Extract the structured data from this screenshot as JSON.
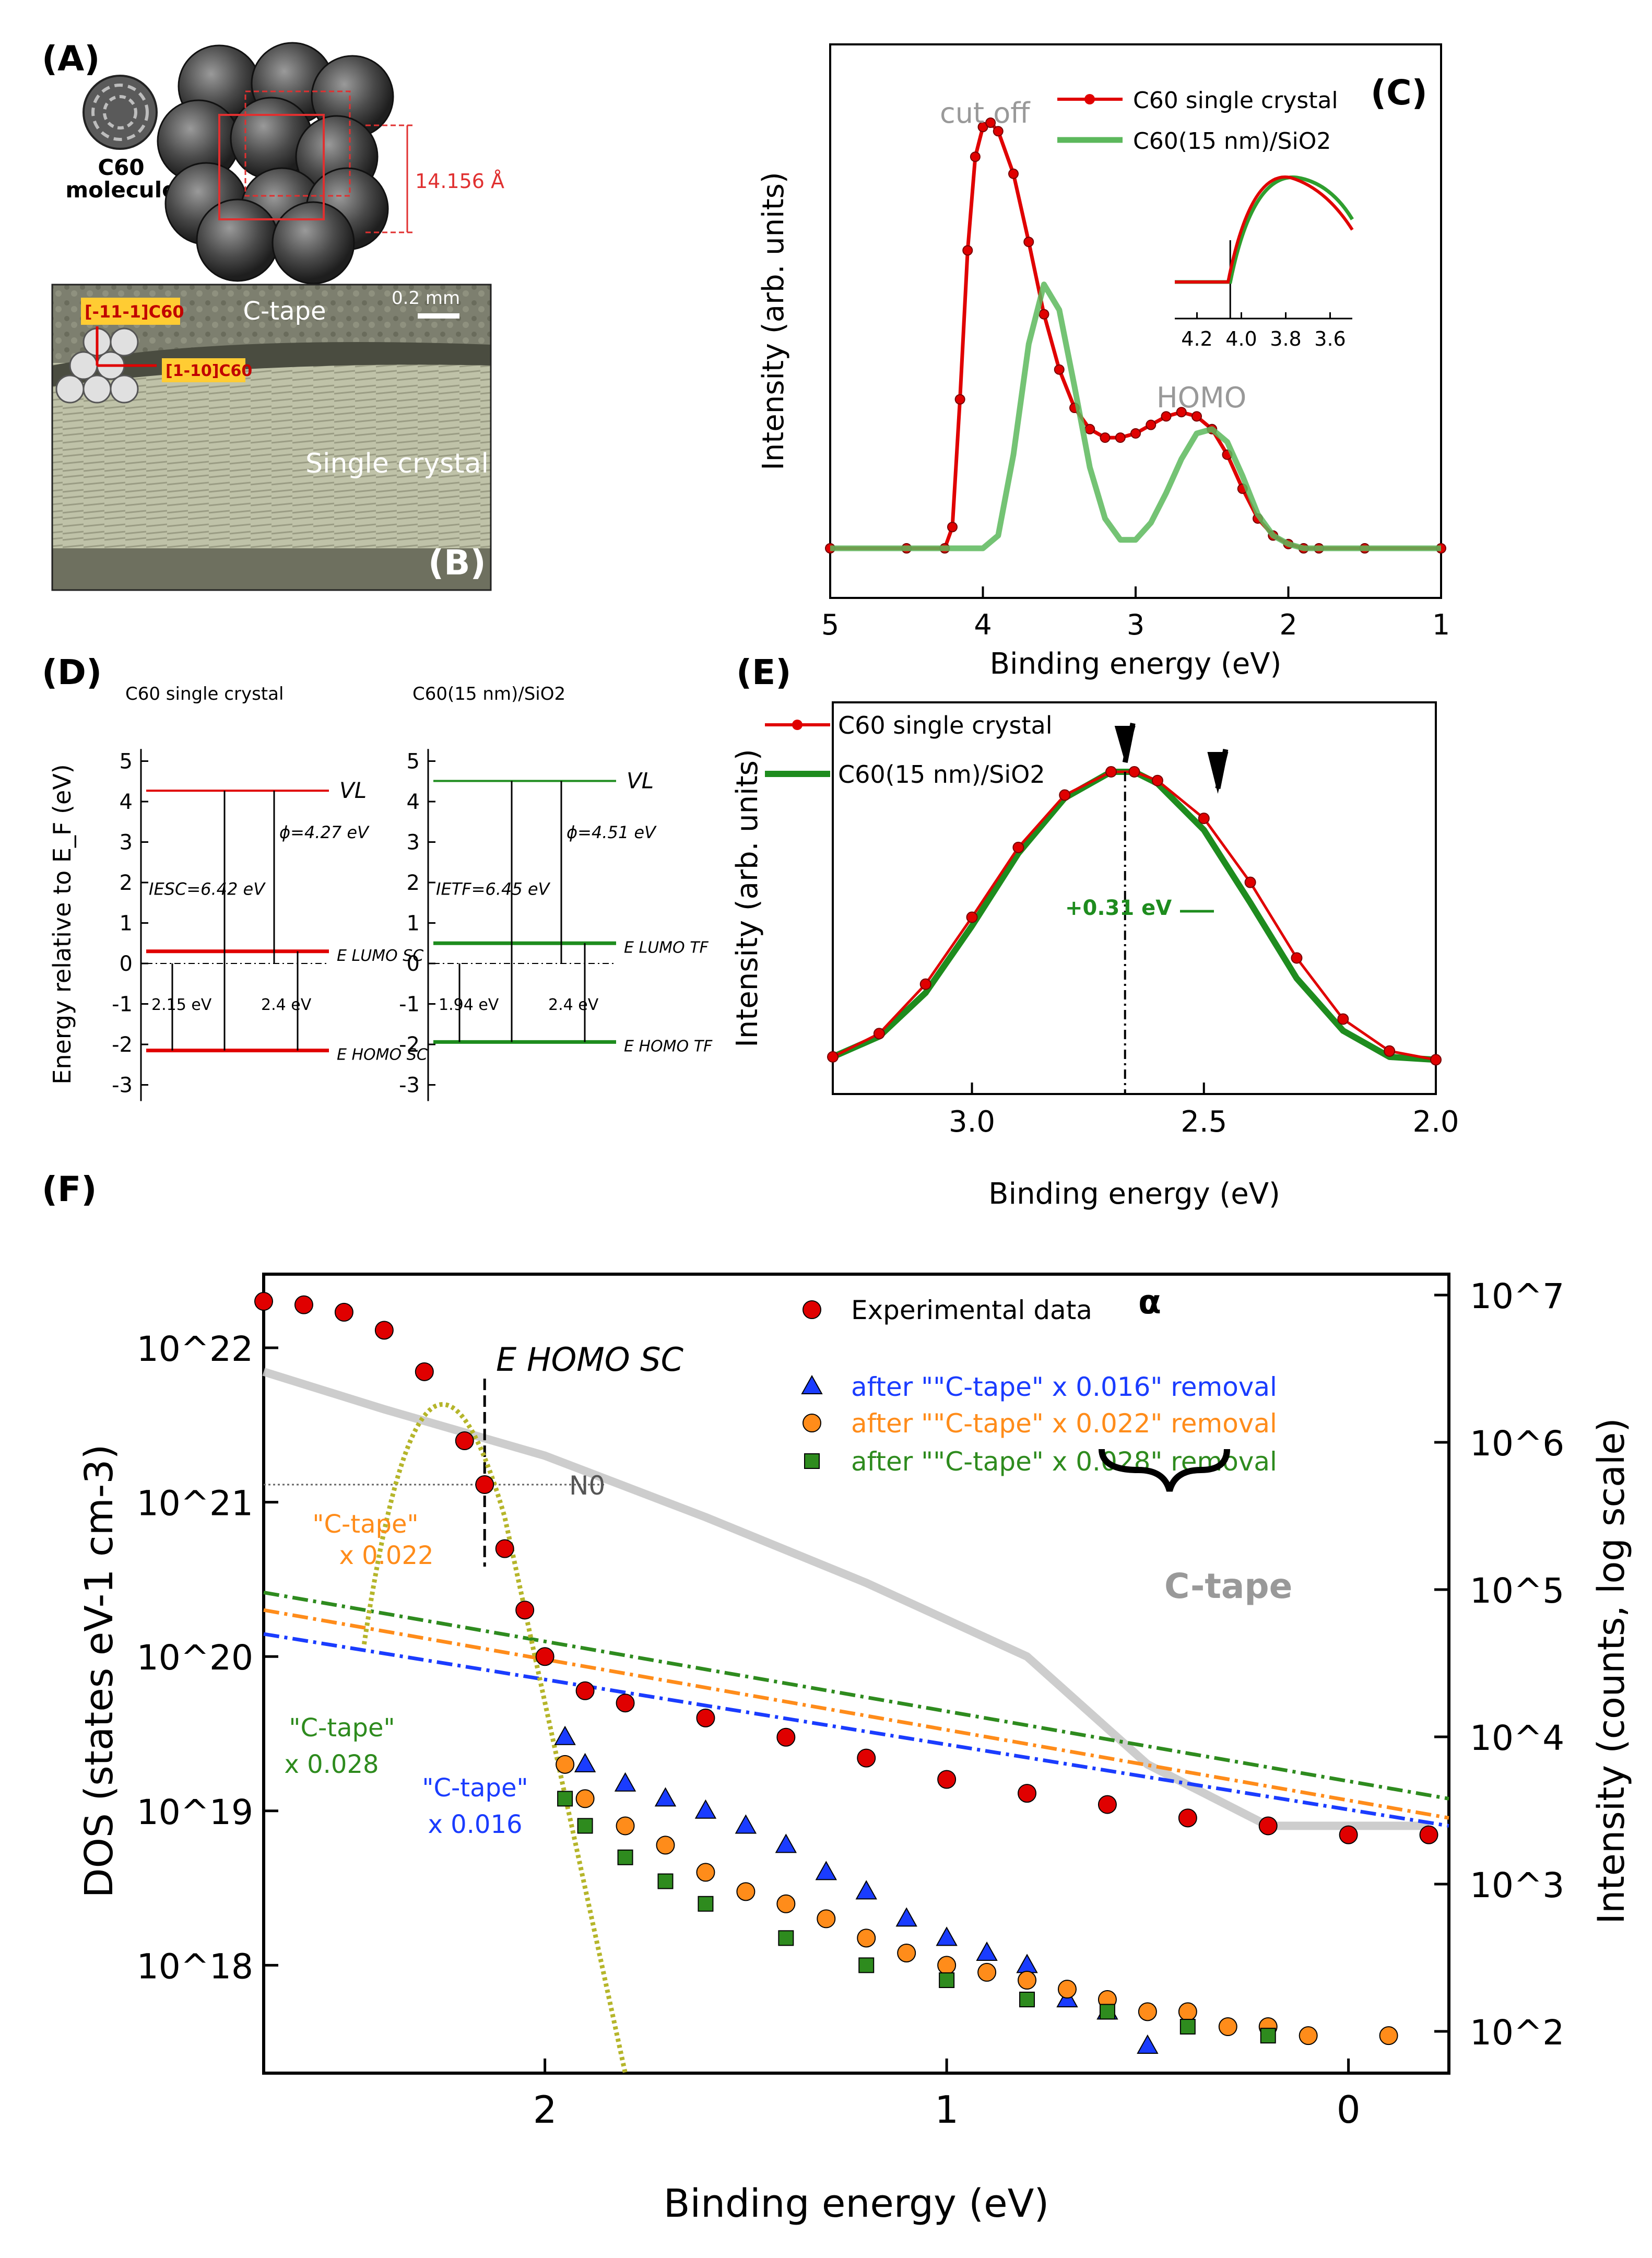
{
  "panels": {
    "a": {
      "label": "(A)",
      "molecule_label_1": "C60",
      "molecule_label_2": "molecule",
      "lattice_constant": "14.156 Å"
    },
    "b": {
      "label": "(B)",
      "scale_bar": "0.2 mm",
      "tape_label": "C-tape",
      "crystal_label": "Single crystal",
      "dir_1": "[-11-1]C60",
      "dir_2": "[1-10]C60"
    },
    "c": {
      "label": "(C)",
      "annotation_cutoff": "cut off",
      "annotation_homo": "HOMO"
    },
    "d": {
      "label": "(D)",
      "left": {
        "title": "C60 single crystal",
        "vl": "VL",
        "phi": "ϕ=4.27 eV",
        "ie": "IESC=6.42 eV",
        "lumo": "E LUMO SC",
        "homo": "E HOMO SC",
        "gap_lower": "2.15 eV",
        "gap_upper": "2.4 eV"
      },
      "right": {
        "title": "C60(15 nm)/SiO2",
        "vl": "VL",
        "phi": "ϕ=4.51 eV",
        "ie": "IETF=6.45 eV",
        "lumo": "E LUMO TF",
        "homo": "E HOMO TF",
        "gap_lower": "1.94 eV",
        "gap_upper": "2.4 eV"
      },
      "y_label": "Energy relative to E_F (eV)"
    },
    "e": {
      "label": "(E)",
      "shift": "+0.31 eV"
    },
    "f": {
      "label": "(F)",
      "ehomo": "E HOMO SC",
      "n0": "N0",
      "alpha": "α",
      "ctape_label": "C-tape",
      "ann_orange": [
        "\"C-tape\"",
        "x 0.022"
      ],
      "ann_green": [
        "\"C-tape\"",
        "x 0.028"
      ],
      "ann_blue": [
        "\"C-tape\"",
        "x 0.016"
      ]
    }
  },
  "chart_data": [
    {
      "id": "C",
      "type": "line",
      "title": "",
      "xlabel": "Binding energy (eV)",
      "ylabel": "Intensity (arb. units)",
      "xlim": [
        5,
        1
      ],
      "xticks": [
        5,
        4,
        3,
        2,
        1
      ],
      "legend": [
        "C60 single crystal",
        "C60(15 nm)/SiO2"
      ],
      "series": [
        {
          "name": "C60 single crystal",
          "color": "#e00000",
          "x": [
            5.0,
            4.5,
            4.25,
            4.2,
            4.15,
            4.1,
            4.05,
            4.0,
            3.95,
            3.9,
            3.8,
            3.7,
            3.6,
            3.5,
            3.4,
            3.3,
            3.2,
            3.1,
            3.0,
            2.9,
            2.8,
            2.7,
            2.6,
            2.5,
            2.4,
            2.3,
            2.2,
            2.1,
            2.0,
            1.9,
            1.8,
            1.5,
            1.0
          ],
          "y": [
            0.0,
            0.0,
            0.0,
            0.05,
            0.35,
            0.7,
            0.92,
            0.99,
            1.0,
            0.98,
            0.88,
            0.72,
            0.55,
            0.42,
            0.33,
            0.28,
            0.26,
            0.26,
            0.27,
            0.29,
            0.31,
            0.32,
            0.31,
            0.28,
            0.22,
            0.14,
            0.07,
            0.03,
            0.01,
            0.0,
            0.0,
            0.0,
            0.0
          ]
        },
        {
          "name": "C60(15 nm)/SiO2",
          "color": "#5cb85c",
          "x": [
            5.0,
            4.2,
            4.0,
            3.9,
            3.8,
            3.7,
            3.6,
            3.5,
            3.4,
            3.3,
            3.2,
            3.1,
            3.0,
            2.9,
            2.8,
            2.7,
            2.6,
            2.5,
            2.4,
            2.3,
            2.2,
            2.1,
            2.0,
            1.9,
            1.8,
            1.0
          ],
          "y": [
            0.0,
            0.0,
            0.0,
            0.03,
            0.22,
            0.48,
            0.62,
            0.56,
            0.38,
            0.19,
            0.07,
            0.02,
            0.02,
            0.06,
            0.13,
            0.21,
            0.27,
            0.28,
            0.25,
            0.17,
            0.08,
            0.03,
            0.01,
            0.0,
            0.0,
            0.0
          ]
        }
      ],
      "inset": {
        "xticks": [
          4.2,
          4.0,
          3.8,
          3.6
        ],
        "xlim": [
          4.3,
          3.5
        ]
      }
    },
    {
      "id": "E",
      "type": "line",
      "title": "",
      "xlabel": "Binding energy (eV)",
      "ylabel": "Intensity (arb. units)",
      "xlim": [
        3.3,
        2.0
      ],
      "xticks": [
        3.0,
        2.5,
        2.0
      ],
      "legend": [
        "C60 single crystal",
        "C60(15 nm)/SiO2"
      ],
      "series": [
        {
          "name": "C60 single crystal",
          "color": "#e00000",
          "x": [
            3.3,
            3.2,
            3.1,
            3.0,
            2.9,
            2.8,
            2.7,
            2.65,
            2.6,
            2.5,
            2.4,
            2.3,
            2.2,
            2.1,
            2.0
          ],
          "y": [
            0.02,
            0.1,
            0.27,
            0.5,
            0.74,
            0.92,
            1.0,
            1.0,
            0.97,
            0.84,
            0.62,
            0.36,
            0.15,
            0.04,
            0.01
          ]
        },
        {
          "name": "C60(15 nm)/SiO2",
          "color": "#1e8c1e",
          "x": [
            3.3,
            3.2,
            3.1,
            3.0,
            2.9,
            2.8,
            2.7,
            2.65,
            2.6,
            2.5,
            2.4,
            2.3,
            2.2,
            2.1,
            2.0
          ],
          "y": [
            0.02,
            0.09,
            0.24,
            0.47,
            0.72,
            0.91,
            1.0,
            1.0,
            0.96,
            0.8,
            0.55,
            0.29,
            0.11,
            0.02,
            0.01
          ]
        }
      ]
    },
    {
      "id": "F",
      "type": "scatter",
      "title": "",
      "xlabel": "Binding energy (eV)",
      "ylabel": "DOS (states eV-1 cm-3)",
      "y2label": "Intensity (counts, log scale)",
      "xlim": [
        2.7,
        -0.25
      ],
      "xticks": [
        2,
        1,
        0
      ],
      "ylog": true,
      "ylim": [
        2e+17,
        3e+22
      ],
      "yticks": [
        "10^18",
        "10^19",
        "10^20",
        "10^21",
        "10^22"
      ],
      "y2ticks": [
        "10^2",
        "10^3",
        "10^4",
        "10^5",
        "10^6",
        "10^7"
      ],
      "legend": [
        "Experimental data",
        "after \"\"C-tape\" x 0.016\" removal",
        "after \"\"C-tape\" x 0.022\" removal",
        "after \"\"C-tape\" x 0.028\" removal"
      ],
      "legend_values": [
        "0.016",
        "0.022",
        "0.028"
      ],
      "series": [
        {
          "name": "Experimental data",
          "color": "#e00000",
          "marker": "circle",
          "x": [
            2.7,
            2.6,
            2.5,
            2.4,
            2.3,
            2.2,
            2.15,
            2.1,
            2.05,
            2.0,
            1.9,
            1.8,
            1.6,
            1.4,
            1.2,
            1.0,
            0.8,
            0.6,
            0.4,
            0.2,
            0.0,
            -0.2
          ],
          "y": [
            2e+22,
            1.9e+22,
            1.7e+22,
            1.3e+22,
            7e+21,
            2.5e+21,
            1.3e+21,
            5e+20,
            2e+20,
            1e+20,
            6e+19,
            5e+19,
            4e+19,
            3e+19,
            2.2e+19,
            1.6e+19,
            1.3e+19,
            1.1e+19,
            9e+18,
            8e+18,
            7e+18,
            7e+18
          ]
        },
        {
          "name": "after C-tape x 0.016 removal",
          "color": "#1a3cff",
          "marker": "triangle",
          "x": [
            1.95,
            1.9,
            1.8,
            1.7,
            1.6,
            1.5,
            1.4,
            1.3,
            1.2,
            1.1,
            1.0,
            0.9,
            0.8,
            0.7,
            0.6,
            0.5
          ],
          "y": [
            3e+19,
            2e+19,
            1.5e+19,
            1.2e+19,
            1e+19,
            8e+18,
            6e+18,
            4e+18,
            3e+18,
            2e+18,
            1.5e+18,
            1.2e+18,
            1e+18,
            6e+17,
            5e+17,
            3e+17
          ]
        },
        {
          "name": "after C-tape x 0.022 removal",
          "color": "#ff8c1a",
          "marker": "circle",
          "x": [
            1.95,
            1.9,
            1.8,
            1.7,
            1.6,
            1.5,
            1.4,
            1.3,
            1.2,
            1.1,
            1.0,
            0.9,
            0.8,
            0.7,
            0.6,
            0.5,
            0.4,
            0.3,
            0.2,
            0.1,
            -0.1
          ],
          "y": [
            2e+19,
            1.2e+19,
            8e+18,
            6e+18,
            4e+18,
            3e+18,
            2.5e+18,
            2e+18,
            1.5e+18,
            1.2e+18,
            1e+18,
            9e+17,
            8e+17,
            7e+17,
            6e+17,
            5e+17,
            5e+17,
            4e+17,
            4e+17,
            3.5e+17,
            3.5e+17
          ]
        },
        {
          "name": "after C-tape x 0.028 removal",
          "color": "#2e8b1e",
          "marker": "square",
          "x": [
            1.95,
            1.9,
            1.8,
            1.7,
            1.6,
            1.4,
            1.2,
            1.0,
            0.8,
            0.6,
            0.4,
            0.2
          ],
          "y": [
            1.2e+19,
            8e+18,
            5e+18,
            3.5e+18,
            2.5e+18,
            1.5e+18,
            1e+18,
            8e+17,
            6e+17,
            5e+17,
            4e+17,
            3.5e+17
          ]
        },
        {
          "name": "C-tape",
          "color": "#c8c8c8",
          "marker": "line",
          "axis": "y2",
          "x": [
            2.7,
            2.4,
            2.0,
            1.6,
            1.2,
            0.8,
            0.5,
            0.2,
            0.0,
            -0.2
          ],
          "y": [
            7e+21,
            4e+21,
            2e+21,
            8e+20,
            3e+20,
            1e+20,
            2e+19,
            8e+18,
            8e+18,
            8e+18
          ]
        }
      ],
      "n0_value": "1.3e21"
    }
  ]
}
